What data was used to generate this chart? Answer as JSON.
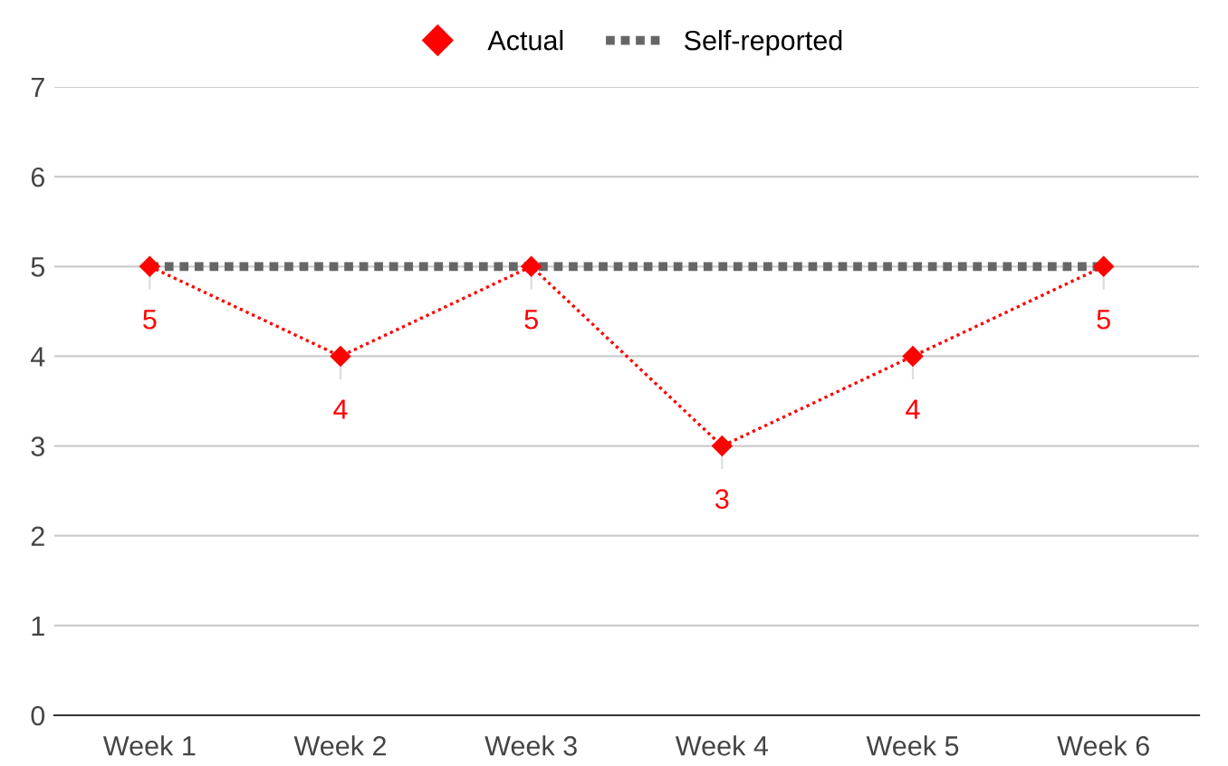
{
  "chart_data": {
    "type": "line",
    "categories": [
      "Week 1",
      "Week 2",
      "Week 3",
      "Week 4",
      "Week 5",
      "Week 6"
    ],
    "series": [
      {
        "name": "Actual",
        "color": "#ff0000",
        "values": [
          5,
          4,
          5,
          3,
          4,
          5
        ],
        "marker": "diamond",
        "line_style": "dotted",
        "value_labels": [
          "5",
          "4",
          "5",
          "3",
          "4",
          "5"
        ]
      },
      {
        "name": "Self-reported",
        "color": "#666666",
        "values": [
          5,
          5,
          5,
          5,
          5,
          5
        ],
        "marker": "none",
        "line_style": "dotted"
      }
    ],
    "ylim": [
      0,
      7
    ],
    "yticks": [
      0,
      1,
      2,
      3,
      4,
      5,
      6,
      7
    ],
    "grid": "y",
    "legend": "top"
  }
}
